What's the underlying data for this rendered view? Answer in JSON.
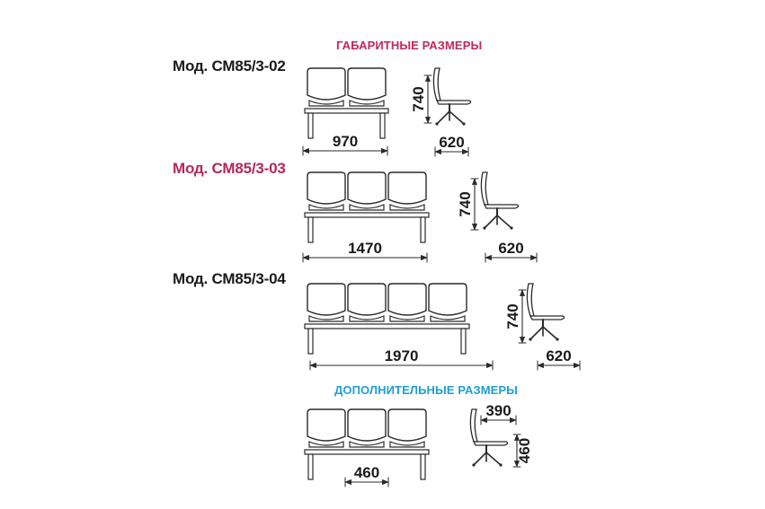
{
  "titles": {
    "overall": "ГАБАРИТНЫЕ РАЗМЕРЫ",
    "additional": "ДОПОЛНИТЕЛЬНЫЕ РАЗМЕРЫ"
  },
  "colors": {
    "overall_title": "#c0285a",
    "additional_title": "#1e9fd0",
    "model_default": "#1a1a1a",
    "model_highlight": "#b02a5c",
    "line": "#2a2a2a"
  },
  "models": [
    {
      "label": "Мод. СМ85/3-02",
      "seats": 2,
      "width": "970",
      "depth": "620",
      "height": "740"
    },
    {
      "label": "Мод. СМ85/3-03",
      "seats": 3,
      "width": "1470",
      "depth": "620",
      "height": "740"
    },
    {
      "label": "Мод. СМ85/3-04",
      "seats": 4,
      "width": "1970",
      "depth": "620",
      "height": "740"
    }
  ],
  "additional": {
    "seats": 3,
    "seat_width": "460",
    "seat_depth": "390",
    "seat_height": "460"
  }
}
